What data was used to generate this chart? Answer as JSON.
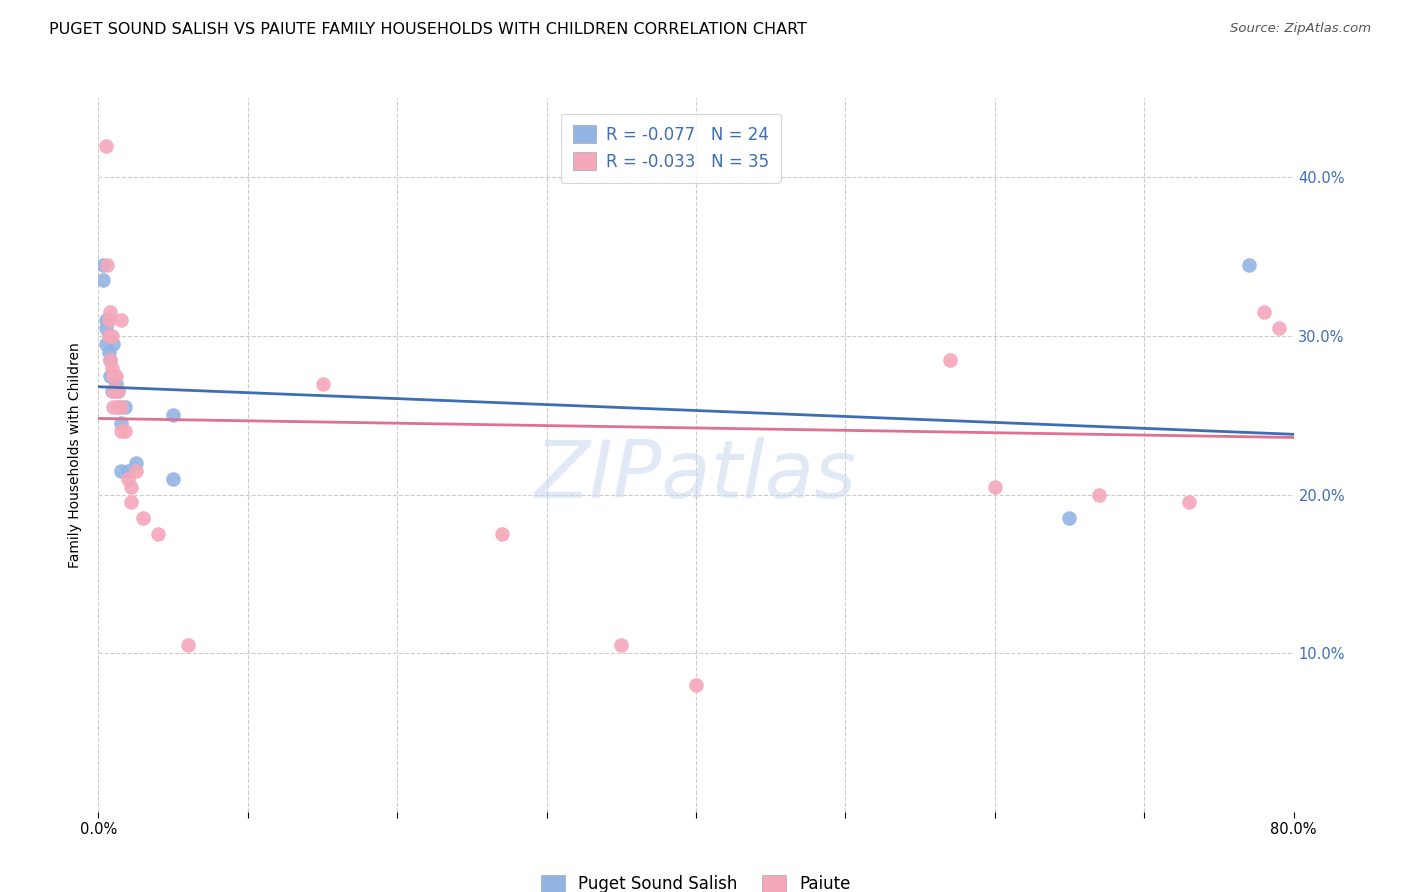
{
  "title": "PUGET SOUND SALISH VS PAIUTE FAMILY HOUSEHOLDS WITH CHILDREN CORRELATION CHART",
  "source": "Source: ZipAtlas.com",
  "ylabel": "Family Households with Children",
  "xlim": [
    0,
    0.8
  ],
  "ylim": [
    0,
    0.45
  ],
  "ytick_vals": [
    0.0,
    0.1,
    0.2,
    0.3,
    0.4
  ],
  "xtick_vals": [
    0.0,
    0.1,
    0.2,
    0.3,
    0.4,
    0.5,
    0.6,
    0.7,
    0.8
  ],
  "blue_color": "#92b4e3",
  "pink_color": "#f4a7b9",
  "blue_line_color": "#3d6db5",
  "pink_line_color": "#e07090",
  "legend_text_color": "#3d6db5",
  "watermark": "ZIPatlas",
  "legend_row1": "R = -0.077   N = 24",
  "legend_row2": "R = -0.033   N = 35",
  "blue_label": "Puget Sound Salish",
  "pink_label": "Paiute",
  "blue_points_x": [
    0.003,
    0.003,
    0.005,
    0.005,
    0.005,
    0.007,
    0.007,
    0.008,
    0.008,
    0.009,
    0.009,
    0.01,
    0.012,
    0.013,
    0.013,
    0.015,
    0.015,
    0.018,
    0.02,
    0.025,
    0.05,
    0.05,
    0.65,
    0.77
  ],
  "blue_points_y": [
    0.345,
    0.335,
    0.31,
    0.305,
    0.295,
    0.3,
    0.29,
    0.285,
    0.275,
    0.275,
    0.265,
    0.295,
    0.27,
    0.265,
    0.255,
    0.245,
    0.215,
    0.255,
    0.215,
    0.22,
    0.21,
    0.25,
    0.185,
    0.345
  ],
  "pink_points_x": [
    0.005,
    0.006,
    0.007,
    0.007,
    0.008,
    0.008,
    0.009,
    0.009,
    0.01,
    0.01,
    0.01,
    0.012,
    0.013,
    0.013,
    0.015,
    0.015,
    0.015,
    0.018,
    0.02,
    0.022,
    0.022,
    0.025,
    0.03,
    0.04,
    0.06,
    0.15,
    0.27,
    0.35,
    0.4,
    0.57,
    0.6,
    0.67,
    0.73,
    0.78,
    0.79
  ],
  "pink_points_y": [
    0.42,
    0.345,
    0.31,
    0.3,
    0.315,
    0.285,
    0.3,
    0.28,
    0.275,
    0.265,
    0.255,
    0.275,
    0.265,
    0.255,
    0.31,
    0.255,
    0.24,
    0.24,
    0.21,
    0.205,
    0.195,
    0.215,
    0.185,
    0.175,
    0.105,
    0.27,
    0.175,
    0.105,
    0.08,
    0.285,
    0.205,
    0.2,
    0.195,
    0.315,
    0.305
  ],
  "blue_trend_x": [
    0.0,
    0.8
  ],
  "blue_trend_y": [
    0.268,
    0.238
  ],
  "pink_trend_x": [
    0.0,
    0.8
  ],
  "pink_trend_y": [
    0.248,
    0.236
  ],
  "background_color": "#ffffff",
  "grid_color": "#cccccc",
  "title_fontsize": 11.5,
  "axis_label_fontsize": 10,
  "tick_fontsize": 10.5,
  "source_fontsize": 9.5,
  "marker_size": 110,
  "legend_fontsize": 12
}
